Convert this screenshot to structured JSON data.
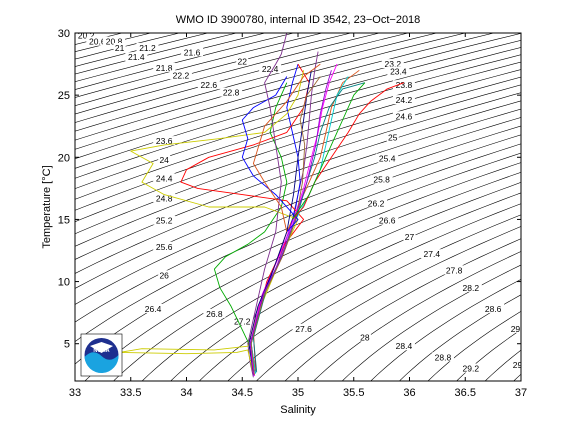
{
  "chart_data": {
    "type": "line",
    "title": "WMO ID 3900780, internal ID 3542, 23−Oct−2018",
    "xlabel": "Salinity",
    "ylabel": "Temperature [°C]",
    "xlim": [
      33,
      37
    ],
    "ylim": [
      2,
      30
    ],
    "x_ticks": [
      "33",
      "33.5",
      "34",
      "34.5",
      "35",
      "35.5",
      "36",
      "36.5",
      "37"
    ],
    "y_ticks": [
      "5",
      "10",
      "15",
      "20",
      "25",
      "30"
    ],
    "grid": false,
    "logo_text": "NOAA",
    "density_contours": {
      "color": "#000000",
      "labels": [
        {
          "text": "20.2",
          "s": 33.1,
          "t": 29.8
        },
        {
          "text": "20.6",
          "s": 33.2,
          "t": 29.3
        },
        {
          "text": "20.8",
          "s": 33.35,
          "t": 29.3
        },
        {
          "text": "21",
          "s": 33.4,
          "t": 28.8
        },
        {
          "text": "21.2",
          "s": 33.65,
          "t": 28.8
        },
        {
          "text": "21.4",
          "s": 33.55,
          "t": 28.05
        },
        {
          "text": "21.6",
          "s": 34.05,
          "t": 28.45
        },
        {
          "text": "21.8",
          "s": 33.8,
          "t": 27.2
        },
        {
          "text": "22",
          "s": 34.5,
          "t": 27.7
        },
        {
          "text": "22.2",
          "s": 33.95,
          "t": 26.6
        },
        {
          "text": "22.4",
          "s": 34.75,
          "t": 27.1
        },
        {
          "text": "22.6",
          "s": 34.2,
          "t": 25.8
        },
        {
          "text": "22.8",
          "s": 34.4,
          "t": 25.2
        },
        {
          "text": "23.2",
          "s": 35.85,
          "t": 27.5
        },
        {
          "text": "23.4",
          "s": 35.9,
          "t": 26.9
        },
        {
          "text": "23.6",
          "s": 33.8,
          "t": 21.3
        },
        {
          "text": "23.8",
          "s": 35.95,
          "t": 25.8
        },
        {
          "text": "24",
          "s": 33.8,
          "t": 19.8
        },
        {
          "text": "24.2",
          "s": 35.95,
          "t": 24.6
        },
        {
          "text": "24.4",
          "s": 33.8,
          "t": 18.3
        },
        {
          "text": "24.6",
          "s": 35.95,
          "t": 23.3
        },
        {
          "text": "24.8",
          "s": 33.8,
          "t": 16.7
        },
        {
          "text": "25",
          "s": 35.85,
          "t": 21.6
        },
        {
          "text": "25.2",
          "s": 33.8,
          "t": 14.9
        },
        {
          "text": "25.4",
          "s": 35.8,
          "t": 19.9
        },
        {
          "text": "25.6",
          "s": 33.8,
          "t": 12.8
        },
        {
          "text": "25.8",
          "s": 35.75,
          "t": 18.2
        },
        {
          "text": "26",
          "s": 33.8,
          "t": 10.5
        },
        {
          "text": "26.2",
          "s": 35.7,
          "t": 16.3
        },
        {
          "text": "26.4",
          "s": 33.7,
          "t": 7.8
        },
        {
          "text": "26.6",
          "s": 35.8,
          "t": 14.9
        },
        {
          "text": "26.8",
          "s": 34.25,
          "t": 7.4
        },
        {
          "text": "27",
          "s": 36.0,
          "t": 13.6
        },
        {
          "text": "27.2",
          "s": 34.5,
          "t": 6.8
        },
        {
          "text": "27.4",
          "s": 36.2,
          "t": 12.2
        },
        {
          "text": "27.6",
          "s": 35.05,
          "t": 6.2
        },
        {
          "text": "27.8",
          "s": 36.4,
          "t": 10.9
        },
        {
          "text": "28",
          "s": 35.6,
          "t": 5.5
        },
        {
          "text": "28.2",
          "s": 36.55,
          "t": 9.5
        },
        {
          "text": "28.4",
          "s": 35.95,
          "t": 4.8
        },
        {
          "text": "28.6",
          "s": 36.75,
          "t": 7.8
        },
        {
          "text": "28.8",
          "s": 36.3,
          "t": 3.9
        },
        {
          "text": "29",
          "s": 36.95,
          "t": 6.2
        },
        {
          "text": "29.2",
          "s": 36.55,
          "t": 3.0
        },
        {
          "text": "29.4",
          "s": 37.0,
          "t": 3.3
        }
      ]
    },
    "series": [
      {
        "color": "#7e2f8e",
        "points": [
          [
            34.6,
            2.3
          ],
          [
            34.57,
            3.5
          ],
          [
            34.55,
            5
          ],
          [
            34.6,
            7
          ],
          [
            34.7,
            9
          ],
          [
            34.8,
            11
          ],
          [
            34.88,
            13
          ],
          [
            34.95,
            15
          ],
          [
            35.0,
            17
          ],
          [
            35.05,
            19
          ],
          [
            35.08,
            21
          ],
          [
            35.1,
            23
          ],
          [
            35.12,
            25
          ],
          [
            35.15,
            27
          ],
          [
            35.18,
            28.5
          ]
        ]
      },
      {
        "color": "#d95319",
        "points": [
          [
            34.6,
            2.5
          ],
          [
            34.58,
            5
          ],
          [
            34.65,
            8
          ],
          [
            34.78,
            11
          ],
          [
            34.9,
            14
          ],
          [
            35.0,
            16
          ],
          [
            35.1,
            18
          ],
          [
            35.2,
            20
          ],
          [
            35.25,
            22
          ],
          [
            35.3,
            24
          ],
          [
            35.4,
            26
          ],
          [
            35.55,
            27
          ]
        ]
      },
      {
        "color": "#0000ff",
        "points": [
          [
            34.62,
            2.6
          ],
          [
            34.58,
            5
          ],
          [
            34.66,
            8
          ],
          [
            34.8,
            11.5
          ],
          [
            34.92,
            14
          ],
          [
            34.98,
            16
          ],
          [
            35.02,
            18
          ],
          [
            35.0,
            20
          ],
          [
            34.95,
            22
          ],
          [
            34.9,
            24
          ],
          [
            34.95,
            26
          ],
          [
            35.0,
            27.5
          ]
        ]
      },
      {
        "color": "#00aa00",
        "points": [
          [
            34.6,
            3
          ],
          [
            34.56,
            5
          ],
          [
            34.4,
            8
          ],
          [
            34.3,
            9.5
          ],
          [
            34.25,
            11
          ],
          [
            34.35,
            12
          ],
          [
            34.55,
            13
          ],
          [
            34.7,
            14
          ],
          [
            34.85,
            16
          ],
          [
            34.9,
            18
          ],
          [
            34.85,
            20
          ],
          [
            34.75,
            22
          ],
          [
            34.8,
            24
          ],
          [
            34.9,
            26
          ]
        ]
      },
      {
        "color": "#ff0000",
        "points": [
          [
            34.62,
            2.8
          ],
          [
            34.6,
            6
          ],
          [
            34.72,
            10
          ],
          [
            34.88,
            13
          ],
          [
            35.05,
            15
          ],
          [
            34.9,
            16.5
          ],
          [
            34.5,
            17
          ],
          [
            34.1,
            17.5
          ],
          [
            33.95,
            18
          ],
          [
            34.0,
            19
          ],
          [
            34.2,
            20
          ],
          [
            34.6,
            21
          ],
          [
            34.9,
            22
          ],
          [
            35.05,
            24
          ],
          [
            35.1,
            26
          ],
          [
            35.0,
            27.5
          ]
        ]
      },
      {
        "color": "#cccc00",
        "points": [
          [
            34.6,
            2.5
          ],
          [
            34.55,
            4.5
          ],
          [
            34.45,
            4.3
          ],
          [
            34.0,
            4.2
          ],
          [
            33.4,
            4.3
          ],
          [
            33.6,
            4.6
          ],
          [
            34.25,
            4.5
          ],
          [
            34.55,
            4.8
          ],
          [
            34.62,
            7
          ],
          [
            34.76,
            10
          ],
          [
            34.9,
            13
          ],
          [
            35.0,
            15
          ],
          [
            34.7,
            16
          ],
          [
            34.2,
            16
          ],
          [
            33.8,
            17
          ],
          [
            33.6,
            18
          ],
          [
            33.7,
            19.5
          ],
          [
            33.5,
            20.5
          ],
          [
            33.8,
            21
          ],
          [
            34.3,
            21.5
          ],
          [
            34.7,
            22
          ],
          [
            34.9,
            23.5
          ],
          [
            35.0,
            25
          ],
          [
            35.05,
            27
          ]
        ]
      },
      {
        "color": "#00cccc",
        "points": [
          [
            34.62,
            2.6
          ],
          [
            34.58,
            5
          ],
          [
            34.7,
            9
          ],
          [
            34.85,
            12
          ],
          [
            34.98,
            15
          ],
          [
            35.1,
            17
          ],
          [
            35.2,
            19
          ],
          [
            35.25,
            21
          ],
          [
            35.3,
            23
          ],
          [
            35.35,
            25
          ],
          [
            35.45,
            26.5
          ]
        ]
      },
      {
        "color": "#ff00ff",
        "points": [
          [
            34.61,
            2.4
          ],
          [
            34.57,
            5
          ],
          [
            34.68,
            9
          ],
          [
            34.83,
            12
          ],
          [
            34.96,
            15
          ],
          [
            35.05,
            17.5
          ],
          [
            35.12,
            20
          ],
          [
            35.18,
            22
          ],
          [
            35.22,
            24
          ],
          [
            35.28,
            26
          ],
          [
            35.35,
            27.5
          ]
        ]
      },
      {
        "color": "#000080",
        "points": [
          [
            34.6,
            2.5
          ],
          [
            34.56,
            5
          ],
          [
            34.64,
            8
          ],
          [
            34.78,
            11
          ],
          [
            34.9,
            14
          ],
          [
            34.96,
            17
          ],
          [
            35.0,
            20
          ],
          [
            35.05,
            23
          ],
          [
            35.08,
            25
          ],
          [
            35.12,
            27
          ]
        ]
      },
      {
        "color": "#008080",
        "points": [
          [
            34.63,
            2.7
          ],
          [
            34.6,
            5.5
          ],
          [
            34.72,
            9.5
          ],
          [
            34.88,
            12.5
          ],
          [
            35.0,
            15.5
          ],
          [
            35.08,
            18
          ],
          [
            35.15,
            20
          ],
          [
            35.2,
            22
          ],
          [
            35.28,
            24
          ],
          [
            35.4,
            25.5
          ],
          [
            35.6,
            26
          ]
        ]
      },
      {
        "color": "#996633",
        "points": [
          [
            34.61,
            2.5
          ],
          [
            34.58,
            5
          ],
          [
            34.7,
            9
          ],
          [
            34.86,
            12
          ],
          [
            34.98,
            15
          ],
          [
            35.04,
            18
          ],
          [
            35.06,
            21
          ],
          [
            35.02,
            23
          ],
          [
            35.08,
            25
          ],
          [
            35.2,
            26.5
          ]
        ]
      },
      {
        "color": "#9400d3",
        "points": [
          [
            34.6,
            2.4
          ],
          [
            34.57,
            5
          ],
          [
            34.69,
            9
          ],
          [
            34.85,
            12
          ],
          [
            34.97,
            15
          ],
          [
            35.08,
            18
          ],
          [
            35.16,
            21
          ],
          [
            35.2,
            23.5
          ],
          [
            35.25,
            25.5
          ],
          [
            35.3,
            27
          ]
        ]
      },
      {
        "color": "#0000ff",
        "points": [
          [
            34.9,
            14
          ],
          [
            35.0,
            15
          ],
          [
            34.8,
            17
          ],
          [
            34.6,
            18.5
          ],
          [
            34.5,
            20
          ],
          [
            34.55,
            21.5
          ],
          [
            34.5,
            23
          ],
          [
            34.6,
            24
          ],
          [
            34.8,
            25
          ],
          [
            34.9,
            26.5
          ]
        ]
      },
      {
        "color": "#ff0000",
        "points": [
          [
            34.95,
            15
          ],
          [
            35.05,
            16
          ],
          [
            35.15,
            18
          ],
          [
            35.3,
            20
          ],
          [
            35.45,
            22
          ],
          [
            35.55,
            23.5
          ],
          [
            35.65,
            24.5
          ],
          [
            35.8,
            25.5
          ],
          [
            35.95,
            26
          ]
        ]
      },
      {
        "color": "#00aa00",
        "points": [
          [
            34.95,
            15
          ],
          [
            35.1,
            17
          ],
          [
            35.2,
            19
          ],
          [
            35.3,
            21
          ],
          [
            35.4,
            23
          ],
          [
            35.5,
            25
          ],
          [
            35.6,
            26
          ]
        ]
      },
      {
        "color": "#7e2f8e",
        "points": [
          [
            34.6,
            7
          ],
          [
            34.7,
            11
          ],
          [
            34.8,
            14
          ],
          [
            34.85,
            18
          ],
          [
            34.8,
            21
          ],
          [
            34.75,
            24
          ],
          [
            34.7,
            26
          ],
          [
            34.8,
            27.5
          ],
          [
            34.85,
            28.3
          ],
          [
            34.9,
            30
          ]
        ]
      },
      {
        "color": "#d95319",
        "points": [
          [
            34.9,
            14
          ],
          [
            34.85,
            16
          ],
          [
            34.7,
            18
          ],
          [
            34.6,
            19.5
          ],
          [
            34.65,
            21
          ],
          [
            34.7,
            22.5
          ],
          [
            34.9,
            24.5
          ],
          [
            35.05,
            26.5
          ],
          [
            35.2,
            27.5
          ]
        ]
      }
    ]
  }
}
